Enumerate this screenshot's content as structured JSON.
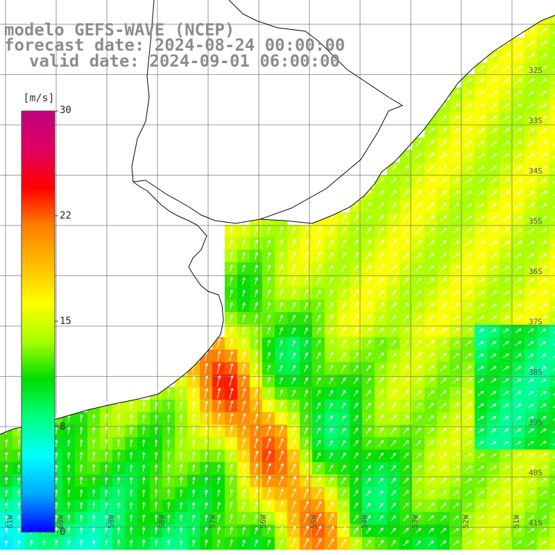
{
  "titles": {
    "line1": "modelo GEFS-WAVE (NCEP)",
    "line2": "forecast date: 2024-08-24 00:00:00",
    "line3": "valid date: 2024-09-01 06:00:00"
  },
  "colorbar": {
    "unit": "[m/s]",
    "ticks": [
      "30",
      "22",
      "15",
      "8",
      "0"
    ],
    "min": 0,
    "max": 30,
    "colors": [
      "#0000ff",
      "#00aaff",
      "#00ffff",
      "#00ff7f",
      "#00dd00",
      "#aaff00",
      "#ffff00",
      "#ffbb00",
      "#ff7f00",
      "#ff0000",
      "#e00060",
      "#c00080"
    ]
  },
  "lat_labels": [
    "32S",
    "33S",
    "34S",
    "35S",
    "36S",
    "37S",
    "38S",
    "39S",
    "40S",
    "41S"
  ],
  "lon_labels": [
    "61W",
    "60W",
    "59W",
    "58W",
    "57W",
    "56W",
    "55W",
    "54W",
    "53W",
    "52W",
    "51W"
  ],
  "field": {
    "description_units": "m/s",
    "land_color": "#ffffff",
    "grid_color": "#7a7a7a"
  }
}
